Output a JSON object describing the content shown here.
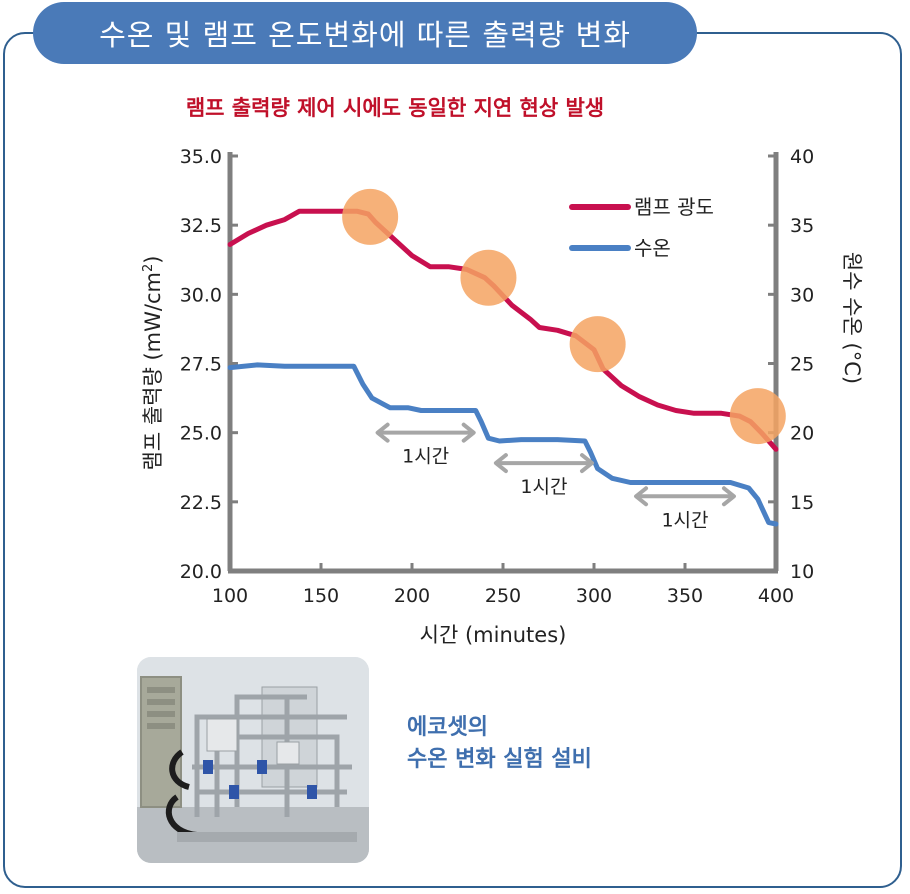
{
  "header": {
    "title": "수온 및 램프 온도변화에 따른 출력량 변화"
  },
  "chart_data": {
    "type": "line",
    "title": "램프 출력량 제어 시에도 동일한 지연 현상 발생",
    "xlabel": "시간 (minutes)",
    "ylabel_left_prefix": "램프 출력량 (mW/cm",
    "ylabel_left_sup": "2",
    "ylabel_left_suffix": ")",
    "ylabel_right": "원수 수온 (°C)",
    "xlim": [
      100,
      400
    ],
    "ylim_left": [
      20.0,
      35.0
    ],
    "ylim_right": [
      10,
      40
    ],
    "x_ticks": [
      "100",
      "150",
      "200",
      "250",
      "300",
      "350",
      "400"
    ],
    "y_left_ticks": [
      "20.0",
      "22.5",
      "25.0",
      "27.5",
      "30.0",
      "32.5",
      "35.0"
    ],
    "y_right_ticks": [
      "10",
      "15",
      "20",
      "25",
      "30",
      "35",
      "40"
    ],
    "grid": false,
    "legend_position": "top-right",
    "series": [
      {
        "name": "램프 광도",
        "axis": "left",
        "color": "#c8104f",
        "points": [
          [
            100,
            31.8
          ],
          [
            110,
            32.2
          ],
          [
            120,
            32.5
          ],
          [
            130,
            32.7
          ],
          [
            138,
            33.0
          ],
          [
            150,
            33.0
          ],
          [
            160,
            33.0
          ],
          [
            170,
            33.0
          ],
          [
            176,
            32.9
          ],
          [
            180,
            32.6
          ],
          [
            190,
            32.0
          ],
          [
            200,
            31.4
          ],
          [
            210,
            31.0
          ],
          [
            220,
            31.0
          ],
          [
            230,
            30.9
          ],
          [
            240,
            30.6
          ],
          [
            245,
            30.3
          ],
          [
            255,
            29.6
          ],
          [
            265,
            29.1
          ],
          [
            270,
            28.8
          ],
          [
            280,
            28.7
          ],
          [
            290,
            28.5
          ],
          [
            300,
            28.0
          ],
          [
            305,
            27.3
          ],
          [
            315,
            26.7
          ],
          [
            325,
            26.3
          ],
          [
            335,
            26.0
          ],
          [
            345,
            25.8
          ],
          [
            355,
            25.7
          ],
          [
            370,
            25.7
          ],
          [
            380,
            25.6
          ],
          [
            386,
            25.4
          ],
          [
            392,
            25.0
          ],
          [
            400,
            24.4
          ]
        ]
      },
      {
        "name": "수온",
        "axis": "right",
        "color": "#4a80c4",
        "points": [
          [
            100,
            24.7
          ],
          [
            115,
            24.9
          ],
          [
            130,
            24.8
          ],
          [
            150,
            24.8
          ],
          [
            168,
            24.8
          ],
          [
            173,
            23.5
          ],
          [
            178,
            22.5
          ],
          [
            188,
            21.8
          ],
          [
            198,
            21.8
          ],
          [
            205,
            21.6
          ],
          [
            220,
            21.6
          ],
          [
            235,
            21.6
          ],
          [
            238,
            20.8
          ],
          [
            242,
            19.6
          ],
          [
            248,
            19.4
          ],
          [
            260,
            19.5
          ],
          [
            280,
            19.5
          ],
          [
            295,
            19.4
          ],
          [
            298,
            18.6
          ],
          [
            302,
            17.4
          ],
          [
            310,
            16.7
          ],
          [
            320,
            16.4
          ],
          [
            340,
            16.4
          ],
          [
            365,
            16.4
          ],
          [
            375,
            16.4
          ],
          [
            385,
            16.0
          ],
          [
            390,
            15.2
          ],
          [
            396,
            13.5
          ],
          [
            400,
            13.4
          ]
        ]
      }
    ],
    "markers": [
      {
        "x": 177,
        "y": 32.8
      },
      {
        "x": 242,
        "y": 30.6
      },
      {
        "x": 302,
        "y": 28.2
      },
      {
        "x": 390,
        "y": 25.6
      }
    ],
    "marker_color": "#f4a361",
    "delay_arrows": [
      {
        "x_start": 180,
        "x_end": 235,
        "y": 25.0,
        "label": "1시간"
      },
      {
        "x_start": 245,
        "x_end": 300,
        "y": 23.9,
        "label": "1시간"
      },
      {
        "x_start": 322,
        "x_end": 378,
        "y": 22.7,
        "label": "1시간"
      }
    ],
    "arrow_color": "#a6a6a6"
  },
  "caption": {
    "line1": "에코셋의",
    "line2": "수온 변화 실험 설비"
  },
  "colors": {
    "title_tab": "#4a7ab8",
    "border": "#2f5f8f",
    "subtitle": "#c0102a",
    "caption": "#3f6fae",
    "axis": "#7f7f7f"
  }
}
